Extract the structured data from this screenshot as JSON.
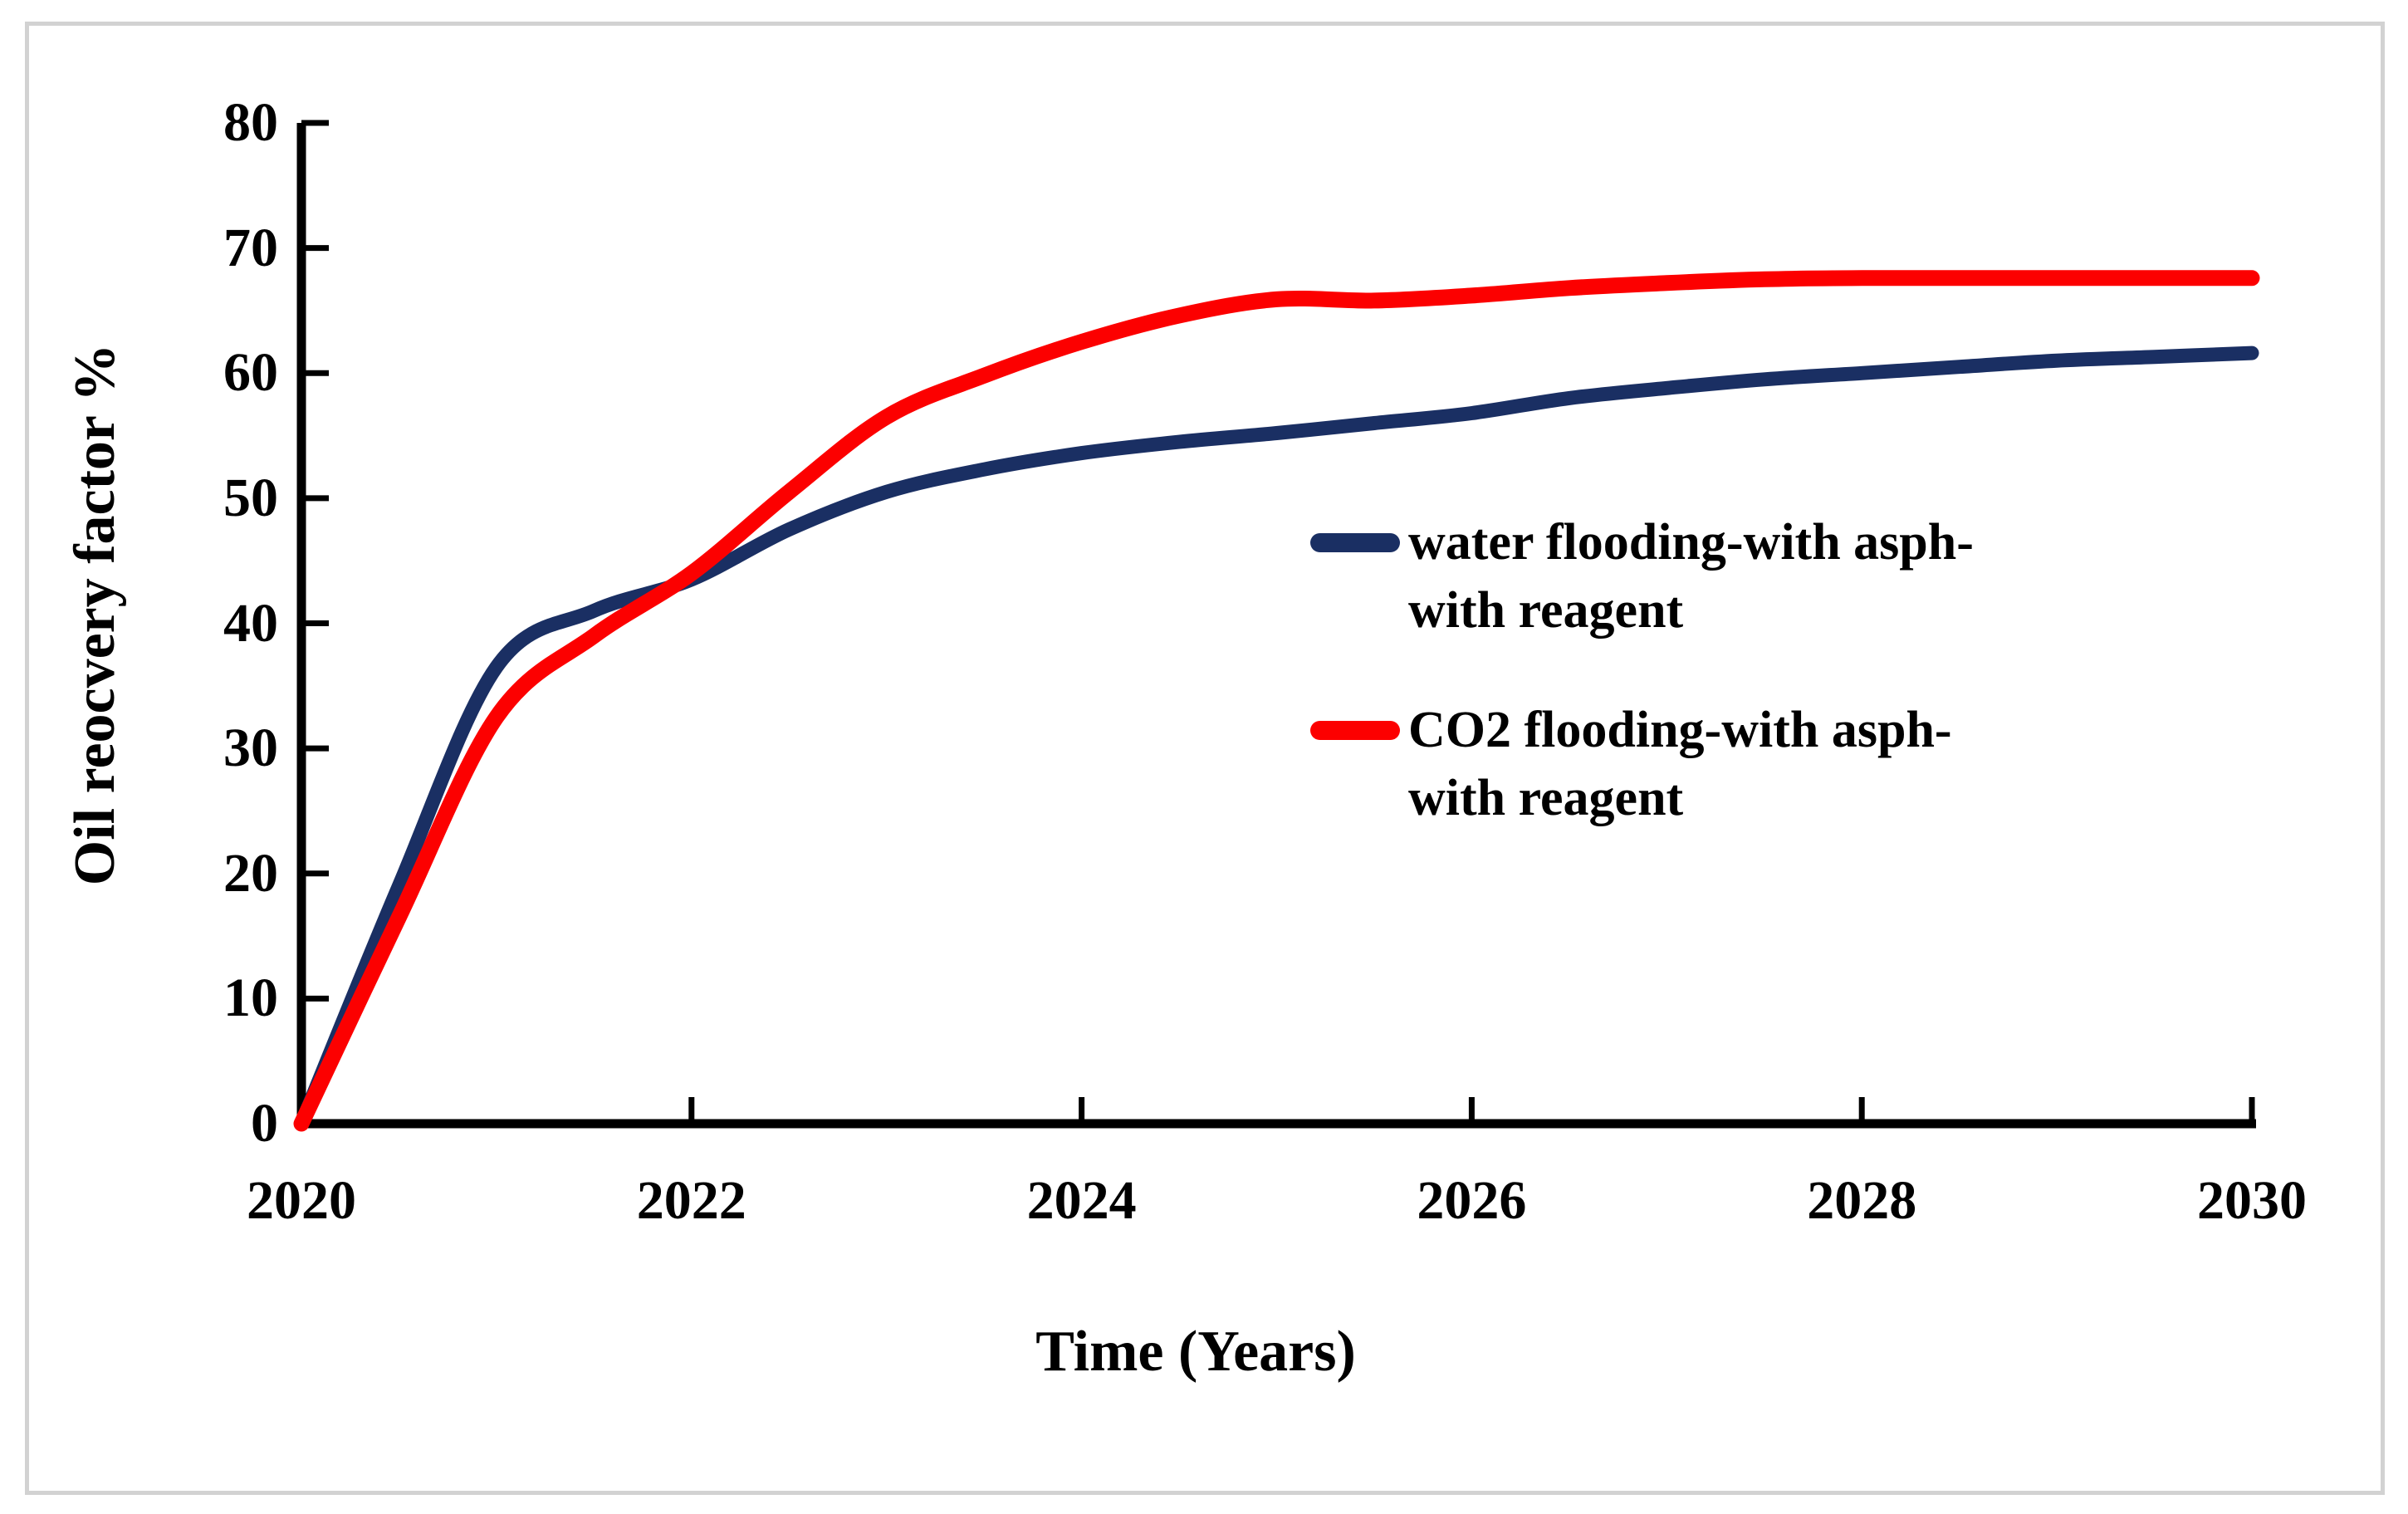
{
  "figure": {
    "background_color": "#ffffff",
    "border_color": "#d2d2d2",
    "axis_color": "#000000"
  },
  "chart_data": {
    "type": "line",
    "title": "",
    "xlabel": "Time (Years)",
    "ylabel": "Oil reocvery factor %",
    "xlim": [
      2020,
      2030
    ],
    "ylim": [
      0,
      80
    ],
    "grid": false,
    "legend_position": "middle-right",
    "x_ticks": [
      2020,
      2022,
      2024,
      2026,
      2028,
      2030
    ],
    "x_tick_labels": [
      "2020",
      "2022",
      "2024",
      "2026",
      "2028",
      "2030"
    ],
    "y_ticks": [
      0,
      10,
      20,
      30,
      40,
      50,
      60,
      70,
      80
    ],
    "y_tick_labels": [
      "0",
      "10",
      "20",
      "30",
      "40",
      "50",
      "60",
      "70",
      "80"
    ],
    "x": [
      2020,
      2020.5,
      2021,
      2021.5,
      2022,
      2022.5,
      2023,
      2023.5,
      2024,
      2024.5,
      2025,
      2025.5,
      2026,
      2026.5,
      2027,
      2027.5,
      2028,
      2028.5,
      2029,
      2029.5,
      2030
    ],
    "series": [
      {
        "name": "water flooding-with asph-with reagent",
        "label_lines": [
          "water flooding-with asph-",
          "with reagent"
        ],
        "color": "#1a2f63",
        "values": [
          0,
          19,
          36.5,
          41,
          43.5,
          47.5,
          50.5,
          52.3,
          53.6,
          54.5,
          55.2,
          56,
          56.8,
          58,
          58.8,
          59.5,
          60,
          60.5,
          61,
          61.3,
          61.6
        ]
      },
      {
        "name": "CO2 flooding-with asph-with reagent",
        "label_lines": [
          "CO2 flooding-with asph-",
          "with reagent"
        ],
        "color": "#fc0000",
        "values": [
          0,
          16.5,
          32.5,
          39,
          44,
          50.5,
          56.5,
          59.8,
          62.5,
          64.6,
          65.9,
          65.8,
          66.2,
          66.8,
          67.2,
          67.5,
          67.6,
          67.6,
          67.6,
          67.6,
          67.6
        ]
      }
    ]
  }
}
